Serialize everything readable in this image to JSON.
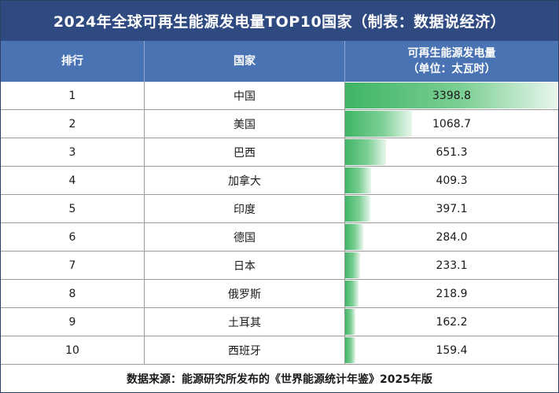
{
  "title": "2024年全球可再生能源发电量TOP10国家（制表：数据说经济）",
  "columns": {
    "rank": "排行",
    "country": "国家",
    "value_line1": "可再生能源发电量",
    "value_line2": "（单位：太瓦时）"
  },
  "chart_data": {
    "type": "table",
    "title": "2024年全球可再生能源发电量TOP10国家（制表：数据说经济）",
    "headers": [
      "排行",
      "国家",
      "可再生能源发电量（单位：太瓦时）"
    ],
    "rows": [
      {
        "rank": "1",
        "country": "中国",
        "value": 3398.8,
        "value_text": "3398.8"
      },
      {
        "rank": "2",
        "country": "美国",
        "value": 1068.7,
        "value_text": "1068.7"
      },
      {
        "rank": "3",
        "country": "巴西",
        "value": 651.3,
        "value_text": "651.3"
      },
      {
        "rank": "4",
        "country": "加拿大",
        "value": 409.3,
        "value_text": "409.3"
      },
      {
        "rank": "5",
        "country": "印度",
        "value": 397.1,
        "value_text": "397.1"
      },
      {
        "rank": "6",
        "country": "德国",
        "value": 284.0,
        "value_text": "284.0"
      },
      {
        "rank": "7",
        "country": "日本",
        "value": 233.1,
        "value_text": "233.1"
      },
      {
        "rank": "8",
        "country": "俄罗斯",
        "value": 218.9,
        "value_text": "218.9"
      },
      {
        "rank": "9",
        "country": "土耳其",
        "value": 162.2,
        "value_text": "162.2"
      },
      {
        "rank": "10",
        "country": "西班牙",
        "value": 159.4,
        "value_text": "159.4"
      }
    ],
    "bar_color": "#3fb565"
  },
  "footer": "数据来源：能源研究所发布的《世界能源统计年鉴》2025年版"
}
